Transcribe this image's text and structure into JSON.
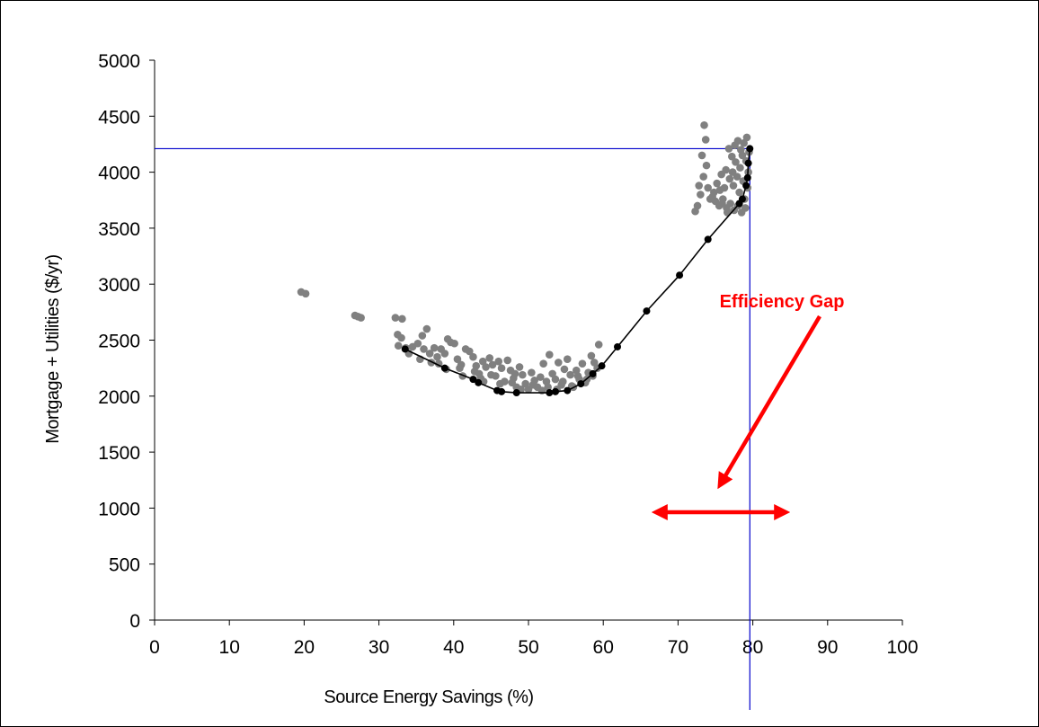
{
  "chart_data": {
    "type": "scatter",
    "title": "",
    "xlabel": "Source Energy Savings (%)",
    "ylabel": "Mortgage + Utilities ($/yr)",
    "xlim": [
      0,
      100
    ],
    "ylim": [
      0,
      5000
    ],
    "xticks": [
      0,
      10,
      20,
      30,
      40,
      50,
      60,
      70,
      80,
      90,
      100
    ],
    "yticks": [
      0,
      500,
      1000,
      1500,
      2000,
      2500,
      3000,
      3500,
      4000,
      4500,
      5000
    ],
    "grid": false,
    "legend": "none",
    "colors": {
      "options": "#808080",
      "frontier": "#000000",
      "reference_lines": "#0000cc",
      "annotation": "#ff0000"
    },
    "series": [
      {
        "points": [
          [
            19.6,
            2930
          ],
          [
            20.2,
            2915
          ],
          [
            26.8,
            2720
          ],
          [
            27.2,
            2710
          ],
          [
            27.6,
            2700
          ],
          [
            32.2,
            2700
          ],
          [
            33.1,
            2690
          ],
          [
            32.5,
            2550
          ],
          [
            33.0,
            2520
          ],
          [
            32.6,
            2450
          ],
          [
            33.6,
            2430
          ],
          [
            34.5,
            2440
          ],
          [
            35.2,
            2470
          ],
          [
            35.8,
            2540
          ],
          [
            36.4,
            2600
          ],
          [
            36.0,
            2420
          ],
          [
            36.8,
            2380
          ],
          [
            37.4,
            2430
          ],
          [
            37.8,
            2350
          ],
          [
            38.3,
            2420
          ],
          [
            38.8,
            2380
          ],
          [
            39.2,
            2510
          ],
          [
            39.6,
            2480
          ],
          [
            40.1,
            2470
          ],
          [
            40.5,
            2330
          ],
          [
            41.0,
            2280
          ],
          [
            41.6,
            2420
          ],
          [
            42.1,
            2400
          ],
          [
            42.6,
            2350
          ],
          [
            43.0,
            2270
          ],
          [
            43.4,
            2200
          ],
          [
            43.9,
            2310
          ],
          [
            44.3,
            2260
          ],
          [
            44.8,
            2340
          ],
          [
            45.2,
            2280
          ],
          [
            45.6,
            2180
          ],
          [
            46.0,
            2310
          ],
          [
            46.4,
            2250
          ],
          [
            46.8,
            2130
          ],
          [
            47.2,
            2320
          ],
          [
            47.6,
            2230
          ],
          [
            48.0,
            2160
          ],
          [
            48.4,
            2080
          ],
          [
            48.8,
            2260
          ],
          [
            49.2,
            2190
          ],
          [
            49.6,
            2110
          ],
          [
            50.0,
            2060
          ],
          [
            50.4,
            2210
          ],
          [
            50.8,
            2140
          ],
          [
            51.2,
            2080
          ],
          [
            51.6,
            2170
          ],
          [
            52.0,
            2290
          ],
          [
            52.4,
            2130
          ],
          [
            52.8,
            2370
          ],
          [
            53.2,
            2200
          ],
          [
            53.6,
            2150
          ],
          [
            54.0,
            2300
          ],
          [
            54.4,
            2100
          ],
          [
            54.8,
            2240
          ],
          [
            55.2,
            2330
          ],
          [
            55.6,
            2190
          ],
          [
            56.0,
            2080
          ],
          [
            56.4,
            2230
          ],
          [
            56.8,
            2150
          ],
          [
            57.2,
            2290
          ],
          [
            57.6,
            2120
          ],
          [
            58.0,
            2210
          ],
          [
            58.4,
            2360
          ],
          [
            58.8,
            2300
          ],
          [
            59.2,
            2250
          ],
          [
            59.4,
            2460
          ],
          [
            37.0,
            2300
          ],
          [
            39.0,
            2240
          ],
          [
            41.2,
            2180
          ],
          [
            44.0,
            2130
          ],
          [
            46.2,
            2110
          ],
          [
            49.0,
            2060
          ],
          [
            51.8,
            2050
          ],
          [
            53.8,
            2060
          ],
          [
            55.8,
            2090
          ],
          [
            57.8,
            2150
          ],
          [
            34.0,
            2380
          ],
          [
            35.5,
            2330
          ],
          [
            38.0,
            2290
          ],
          [
            42.8,
            2220
          ],
          [
            45.0,
            2190
          ],
          [
            47.8,
            2120
          ],
          [
            50.6,
            2100
          ],
          [
            52.6,
            2080
          ],
          [
            54.6,
            2130
          ],
          [
            56.6,
            2180
          ],
          [
            58.6,
            2180
          ],
          [
            40.8,
            2250
          ],
          [
            43.6,
            2160
          ],
          [
            48.2,
            2200
          ],
          [
            73.5,
            4420
          ],
          [
            73.7,
            4290
          ],
          [
            73.2,
            4150
          ],
          [
            73.8,
            4060
          ],
          [
            73.4,
            3960
          ],
          [
            72.8,
            3880
          ],
          [
            73.0,
            3800
          ],
          [
            72.6,
            3700
          ],
          [
            72.3,
            3650
          ],
          [
            74.0,
            3860
          ],
          [
            74.6,
            3780
          ],
          [
            75.0,
            3740
          ],
          [
            75.5,
            3700
          ],
          [
            76.0,
            3760
          ],
          [
            76.5,
            3680
          ],
          [
            77.0,
            3720
          ],
          [
            77.5,
            3660
          ],
          [
            78.0,
            3700
          ],
          [
            78.5,
            3640
          ],
          [
            79.0,
            3680
          ],
          [
            75.2,
            3900
          ],
          [
            75.8,
            3980
          ],
          [
            76.4,
            4020
          ],
          [
            76.8,
            4210
          ],
          [
            77.2,
            4140
          ],
          [
            77.6,
            4240
          ],
          [
            78.0,
            4280
          ],
          [
            78.4,
            4200
          ],
          [
            78.8,
            4260
          ],
          [
            79.2,
            4310
          ],
          [
            76.2,
            3860
          ],
          [
            76.9,
            3940
          ],
          [
            77.4,
            3880
          ],
          [
            77.9,
            3960
          ],
          [
            78.3,
            4040
          ],
          [
            78.7,
            3920
          ],
          [
            79.1,
            4100
          ],
          [
            79.4,
            4000
          ],
          [
            74.8,
            3820
          ],
          [
            75.6,
            3840
          ],
          [
            77.7,
            4090
          ],
          [
            78.2,
            3820
          ],
          [
            78.9,
            3760
          ],
          [
            79.3,
            3860
          ],
          [
            76.6,
            3640
          ],
          [
            77.3,
            4000
          ],
          [
            78.6,
            4150
          ],
          [
            79.5,
            4180
          ],
          [
            75.9,
            3720
          ],
          [
            74.3,
            3760
          ]
        ]
      },
      {
        "points": [
          [
            33.5,
            2420
          ],
          [
            38.8,
            2250
          ],
          [
            42.6,
            2150
          ],
          [
            43.3,
            2120
          ],
          [
            45.8,
            2050
          ],
          [
            46.4,
            2040
          ],
          [
            48.4,
            2030
          ],
          [
            52.8,
            2030
          ],
          [
            53.6,
            2040
          ],
          [
            55.2,
            2050
          ],
          [
            57.0,
            2110
          ],
          [
            58.6,
            2200
          ],
          [
            59.8,
            2270
          ],
          [
            61.9,
            2440
          ],
          [
            65.8,
            2760
          ],
          [
            70.2,
            3080
          ],
          [
            74.0,
            3400
          ],
          [
            78.2,
            3720
          ],
          [
            78.6,
            3760
          ],
          [
            79.1,
            3880
          ],
          [
            79.3,
            3950
          ],
          [
            79.4,
            4080
          ],
          [
            79.6,
            4210
          ]
        ]
      }
    ],
    "reference_lines": {
      "vertical_x": 79.6,
      "horizontal_y": 4210
    },
    "annotations": [
      {
        "text": "Efficiency Gap",
        "x": 84.5,
        "y": 2850
      }
    ]
  }
}
